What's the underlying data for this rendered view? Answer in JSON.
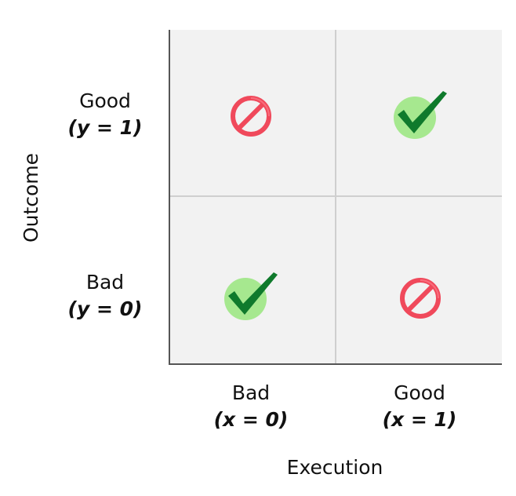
{
  "axes": {
    "y_title": "Outcome",
    "x_title": "Execution",
    "y_ticks": [
      {
        "label": "Good",
        "value": "(y = 1)"
      },
      {
        "label": "Bad",
        "value": "(y = 0)"
      }
    ],
    "x_ticks": [
      {
        "label": "Bad",
        "value": "(x = 0)"
      },
      {
        "label": "Good",
        "value": "(x = 1)"
      }
    ]
  },
  "cells": [
    {
      "row": "top",
      "col": "left",
      "icon": "prohibited-icon"
    },
    {
      "row": "top",
      "col": "right",
      "icon": "check-icon"
    },
    {
      "row": "bottom",
      "col": "left",
      "icon": "check-icon"
    },
    {
      "row": "bottom",
      "col": "right",
      "icon": "prohibited-icon"
    }
  ],
  "colors": {
    "cell_background": "#f2f2f2",
    "prohibited_red": "#f0495b",
    "check_green": "#0f7a2c",
    "check_circle": "#a6e88f"
  }
}
